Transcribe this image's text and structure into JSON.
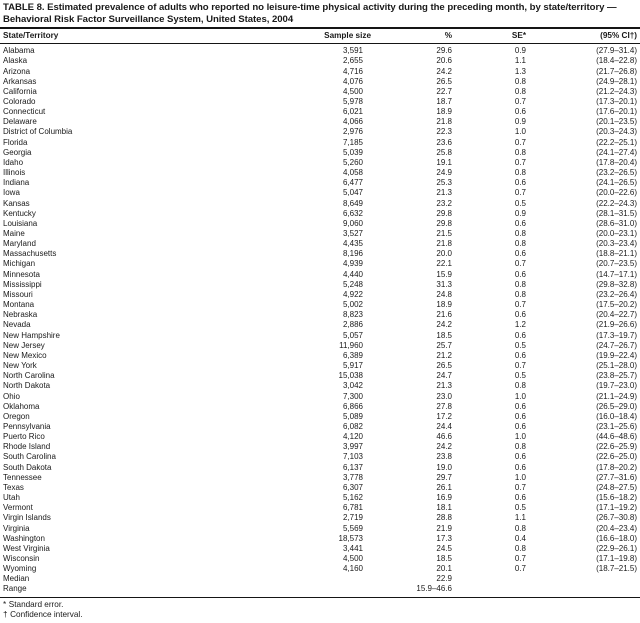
{
  "document": {
    "title": "TABLE 8. Estimated prevalence of adults who reported no leisure-time physical activity during the preceding month, by state/territory — Behavioral Risk Factor Surveillance System, United States, 2004",
    "columns": [
      "State/Territory",
      "Sample size",
      "%",
      "SE*",
      "(95% CI†)"
    ],
    "rows": [
      [
        "Alabama",
        "3,591",
        "29.6",
        "0.9",
        "(27.9–31.4)"
      ],
      [
        "Alaska",
        "2,655",
        "20.6",
        "1.1",
        "(18.4–22.8)"
      ],
      [
        "Arizona",
        "4,716",
        "24.2",
        "1.3",
        "(21.7–26.8)"
      ],
      [
        "Arkansas",
        "4,076",
        "26.5",
        "0.8",
        "(24.9–28.1)"
      ],
      [
        "California",
        "4,500",
        "22.7",
        "0.8",
        "(21.2–24.3)"
      ],
      [
        "Colorado",
        "5,978",
        "18.7",
        "0.7",
        "(17.3–20.1)"
      ],
      [
        "Connecticut",
        "6,021",
        "18.9",
        "0.6",
        "(17.6–20.1)"
      ],
      [
        "Delaware",
        "4,066",
        "21.8",
        "0.9",
        "(20.1–23.5)"
      ],
      [
        "District of Columbia",
        "2,976",
        "22.3",
        "1.0",
        "(20.3–24.3)"
      ],
      [
        "Florida",
        "7,185",
        "23.6",
        "0.7",
        "(22.2–25.1)"
      ],
      [
        "Georgia",
        "5,039",
        "25.8",
        "0.8",
        "(24.1–27.4)"
      ],
      [
        "Idaho",
        "5,260",
        "19.1",
        "0.7",
        "(17.8–20.4)"
      ],
      [
        "Illinois",
        "4,058",
        "24.9",
        "0.8",
        "(23.2–26.5)"
      ],
      [
        "Indiana",
        "6,477",
        "25.3",
        "0.6",
        "(24.1–26.5)"
      ],
      [
        "Iowa",
        "5,047",
        "21.3",
        "0.7",
        "(20.0–22.6)"
      ],
      [
        "Kansas",
        "8,649",
        "23.2",
        "0.5",
        "(22.2–24.3)"
      ],
      [
        "Kentucky",
        "6,632",
        "29.8",
        "0.9",
        "(28.1–31.5)"
      ],
      [
        "Louisiana",
        "9,060",
        "29.8",
        "0.6",
        "(28.6–31.0)"
      ],
      [
        "Maine",
        "3,527",
        "21.5",
        "0.8",
        "(20.0–23.1)"
      ],
      [
        "Maryland",
        "4,435",
        "21.8",
        "0.8",
        "(20.3–23.4)"
      ],
      [
        "Massachusetts",
        "8,196",
        "20.0",
        "0.6",
        "(18.8–21.1)"
      ],
      [
        "Michigan",
        "4,939",
        "22.1",
        "0.7",
        "(20.7–23.5)"
      ],
      [
        "Minnesota",
        "4,440",
        "15.9",
        "0.6",
        "(14.7–17.1)"
      ],
      [
        "Mississippi",
        "5,248",
        "31.3",
        "0.8",
        "(29.8–32.8)"
      ],
      [
        "Missouri",
        "4,922",
        "24.8",
        "0.8",
        "(23.2–26.4)"
      ],
      [
        "Montana",
        "5,002",
        "18.9",
        "0.7",
        "(17.5–20.2)"
      ],
      [
        "Nebraska",
        "8,823",
        "21.6",
        "0.6",
        "(20.4–22.7)"
      ],
      [
        "Nevada",
        "2,886",
        "24.2",
        "1.2",
        "(21.9–26.6)"
      ],
      [
        "New Hampshire",
        "5,057",
        "18.5",
        "0.6",
        "(17.3–19.7)"
      ],
      [
        "New Jersey",
        "11,960",
        "25.7",
        "0.5",
        "(24.7–26.7)"
      ],
      [
        "New Mexico",
        "6,389",
        "21.2",
        "0.6",
        "(19.9–22.4)"
      ],
      [
        "New York",
        "5,917",
        "26.5",
        "0.7",
        "(25.1–28.0)"
      ],
      [
        "North Carolina",
        "15,038",
        "24.7",
        "0.5",
        "(23.8–25.7)"
      ],
      [
        "North Dakota",
        "3,042",
        "21.3",
        "0.8",
        "(19.7–23.0)"
      ],
      [
        "Ohio",
        "7,300",
        "23.0",
        "1.0",
        "(21.1–24.9)"
      ],
      [
        "Oklahoma",
        "6,866",
        "27.8",
        "0.6",
        "(26.5–29.0)"
      ],
      [
        "Oregon",
        "5,089",
        "17.2",
        "0.6",
        "(16.0–18.4)"
      ],
      [
        "Pennsylvania",
        "6,082",
        "24.4",
        "0.6",
        "(23.1–25.6)"
      ],
      [
        "Puerto Rico",
        "4,120",
        "46.6",
        "1.0",
        "(44.6–48.6)"
      ],
      [
        "Rhode Island",
        "3,997",
        "24.2",
        "0.8",
        "(22.6–25.9)"
      ],
      [
        "South Carolina",
        "7,103",
        "23.8",
        "0.6",
        "(22.6–25.0)"
      ],
      [
        "South Dakota",
        "6,137",
        "19.0",
        "0.6",
        "(17.8–20.2)"
      ],
      [
        "Tennessee",
        "3,778",
        "29.7",
        "1.0",
        "(27.7–31.6)"
      ],
      [
        "Texas",
        "6,307",
        "26.1",
        "0.7",
        "(24.8–27.5)"
      ],
      [
        "Utah",
        "5,162",
        "16.9",
        "0.6",
        "(15.6–18.2)"
      ],
      [
        "Vermont",
        "6,781",
        "18.1",
        "0.5",
        "(17.1–19.2)"
      ],
      [
        "Virgin Islands",
        "2,719",
        "28.8",
        "1.1",
        "(26.7–30.8)"
      ],
      [
        "Virginia",
        "5,569",
        "21.9",
        "0.8",
        "(20.4–23.4)"
      ],
      [
        "Washington",
        "18,573",
        "17.3",
        "0.4",
        "(16.6–18.0)"
      ],
      [
        "West Virginia",
        "3,441",
        "24.5",
        "0.8",
        "(22.9–26.1)"
      ],
      [
        "Wisconsin",
        "4,500",
        "18.5",
        "0.7",
        "(17.1–19.8)"
      ],
      [
        "Wyoming",
        "4,160",
        "20.1",
        "0.7",
        "(18.7–21.5)"
      ]
    ],
    "summary_rows": [
      [
        "Median",
        "",
        "22.9",
        "",
        ""
      ],
      [
        "Range",
        "",
        "15.9–46.6",
        "",
        ""
      ]
    ],
    "footnotes": [
      {
        "marker": "*",
        "text": "Standard error."
      },
      {
        "marker": "†",
        "text": "Confidence interval."
      }
    ],
    "colors": {
      "text": "#1a1a1a",
      "rule": "#151515",
      "background": "#ffffff"
    }
  }
}
